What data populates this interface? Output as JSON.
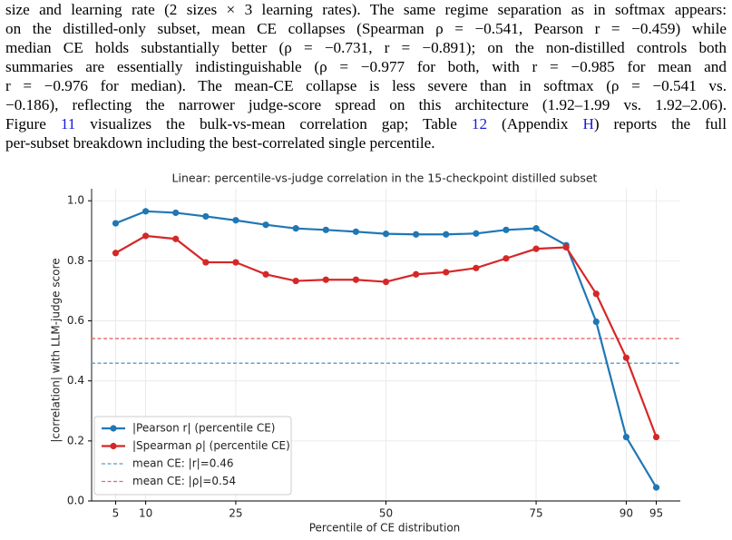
{
  "paragraph": {
    "lines": [
      [
        {
          "text": "size and learning rate (2 sizes × 3 learning rates). The same regime separation as in softmax appears:"
        }
      ],
      [
        {
          "text": "on the distilled-only subset, mean CE collapses (Spearman ρ = −0.541, Pearson r = −0.459) while"
        }
      ],
      [
        {
          "text": "median CE holds substantially better (ρ = −0.731, r = −0.891); on the non-distilled controls both"
        }
      ],
      [
        {
          "text": "summaries are essentially indistinguishable (ρ = −0.977 for both, with r = −0.985 for mean and"
        }
      ],
      [
        {
          "text": "r = −0.976 for median). The mean-CE collapse is less severe than in softmax (ρ = −0.541 vs."
        }
      ],
      [
        {
          "text": "−0.186), reflecting the narrower judge-score spread on this architecture (1.92–1.99 vs. 1.92–2.06)."
        }
      ],
      [
        {
          "text": "Figure "
        },
        {
          "text": "11",
          "ref": true
        },
        {
          "text": " visualizes the bulk-vs-mean correlation gap; Table "
        },
        {
          "text": "12",
          "ref": true
        },
        {
          "text": " (Appendix "
        },
        {
          "text": "H",
          "ref": true
        },
        {
          "text": ") reports the full"
        }
      ],
      [
        {
          "text": "per-subset breakdown including the best-correlated single percentile."
        }
      ]
    ]
  },
  "chart_data": {
    "type": "line",
    "title": "Linear: percentile-vs-judge correlation in the 15-checkpoint distilled subset",
    "x_label": "Percentile of CE distribution",
    "y_label": "|correlation| with LLM-judge score",
    "x": [
      5,
      10,
      15,
      20,
      25,
      30,
      35,
      40,
      45,
      50,
      55,
      60,
      65,
      70,
      75,
      80,
      85,
      90,
      95
    ],
    "series": [
      {
        "name": "|Pearson r| (percentile CE)",
        "color": "#1f77b4",
        "values": [
          0.925,
          0.965,
          0.96,
          0.948,
          0.935,
          0.92,
          0.908,
          0.903,
          0.897,
          0.89,
          0.888,
          0.888,
          0.891,
          0.903,
          0.908,
          0.852,
          0.597,
          0.213,
          0.045
        ]
      },
      {
        "name": "|Spearman ρ| (percentile CE)",
        "color": "#d62728",
        "values": [
          0.826,
          0.883,
          0.873,
          0.795,
          0.795,
          0.755,
          0.733,
          0.737,
          0.737,
          0.73,
          0.755,
          0.762,
          0.776,
          0.808,
          0.84,
          0.845,
          0.69,
          0.477,
          0.213
        ]
      }
    ],
    "hlines": [
      {
        "name": "mean CE: |r|=0.46",
        "value": 0.459,
        "color": "#5b9bc8"
      },
      {
        "name": "mean CE: |ρ|=0.54",
        "value": 0.541,
        "color": "#e5666b"
      }
    ],
    "xlim": [
      1,
      99
    ],
    "ylim": [
      0,
      1.04
    ],
    "xticks": [
      5,
      10,
      25,
      50,
      75,
      90,
      95
    ],
    "yticks": [
      {
        "value": 0,
        "label": "0.0"
      },
      0.2,
      0.4,
      0.6,
      0.8,
      {
        "value": 1,
        "label": "1.0"
      }
    ],
    "grid": true,
    "legend": "lower left"
  }
}
